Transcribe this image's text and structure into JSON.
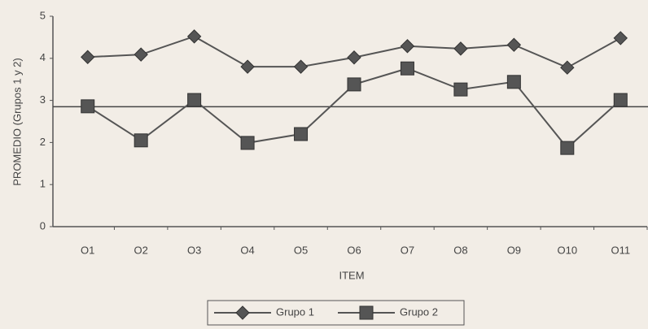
{
  "chart_data": {
    "type": "line",
    "y_label": "PROMEDIO (Grupos 1 y 2)",
    "x_label": "ITEM",
    "categories": [
      "O1",
      "O2",
      "O3",
      "O4",
      "O5",
      "O6",
      "O7",
      "O8",
      "O9",
      "O10",
      "O11"
    ],
    "series": [
      {
        "name": "Grupo 1",
        "color": "#555555",
        "marker": "diamond",
        "values": [
          4.03,
          4.09,
          4.52,
          3.8,
          3.8,
          4.02,
          4.29,
          4.23,
          4.32,
          3.78,
          4.48
        ]
      },
      {
        "name": "Grupo 2",
        "color": "#555555",
        "marker": "square",
        "values": [
          2.86,
          2.05,
          3.01,
          1.99,
          2.2,
          3.38,
          3.76,
          3.26,
          3.44,
          1.87,
          3.01
        ]
      }
    ],
    "reference_line": 2.85,
    "ylim": [
      0,
      5
    ],
    "yticks": [
      0,
      1,
      2,
      3,
      4,
      5
    ],
    "grid": false,
    "legend": "bottom"
  }
}
